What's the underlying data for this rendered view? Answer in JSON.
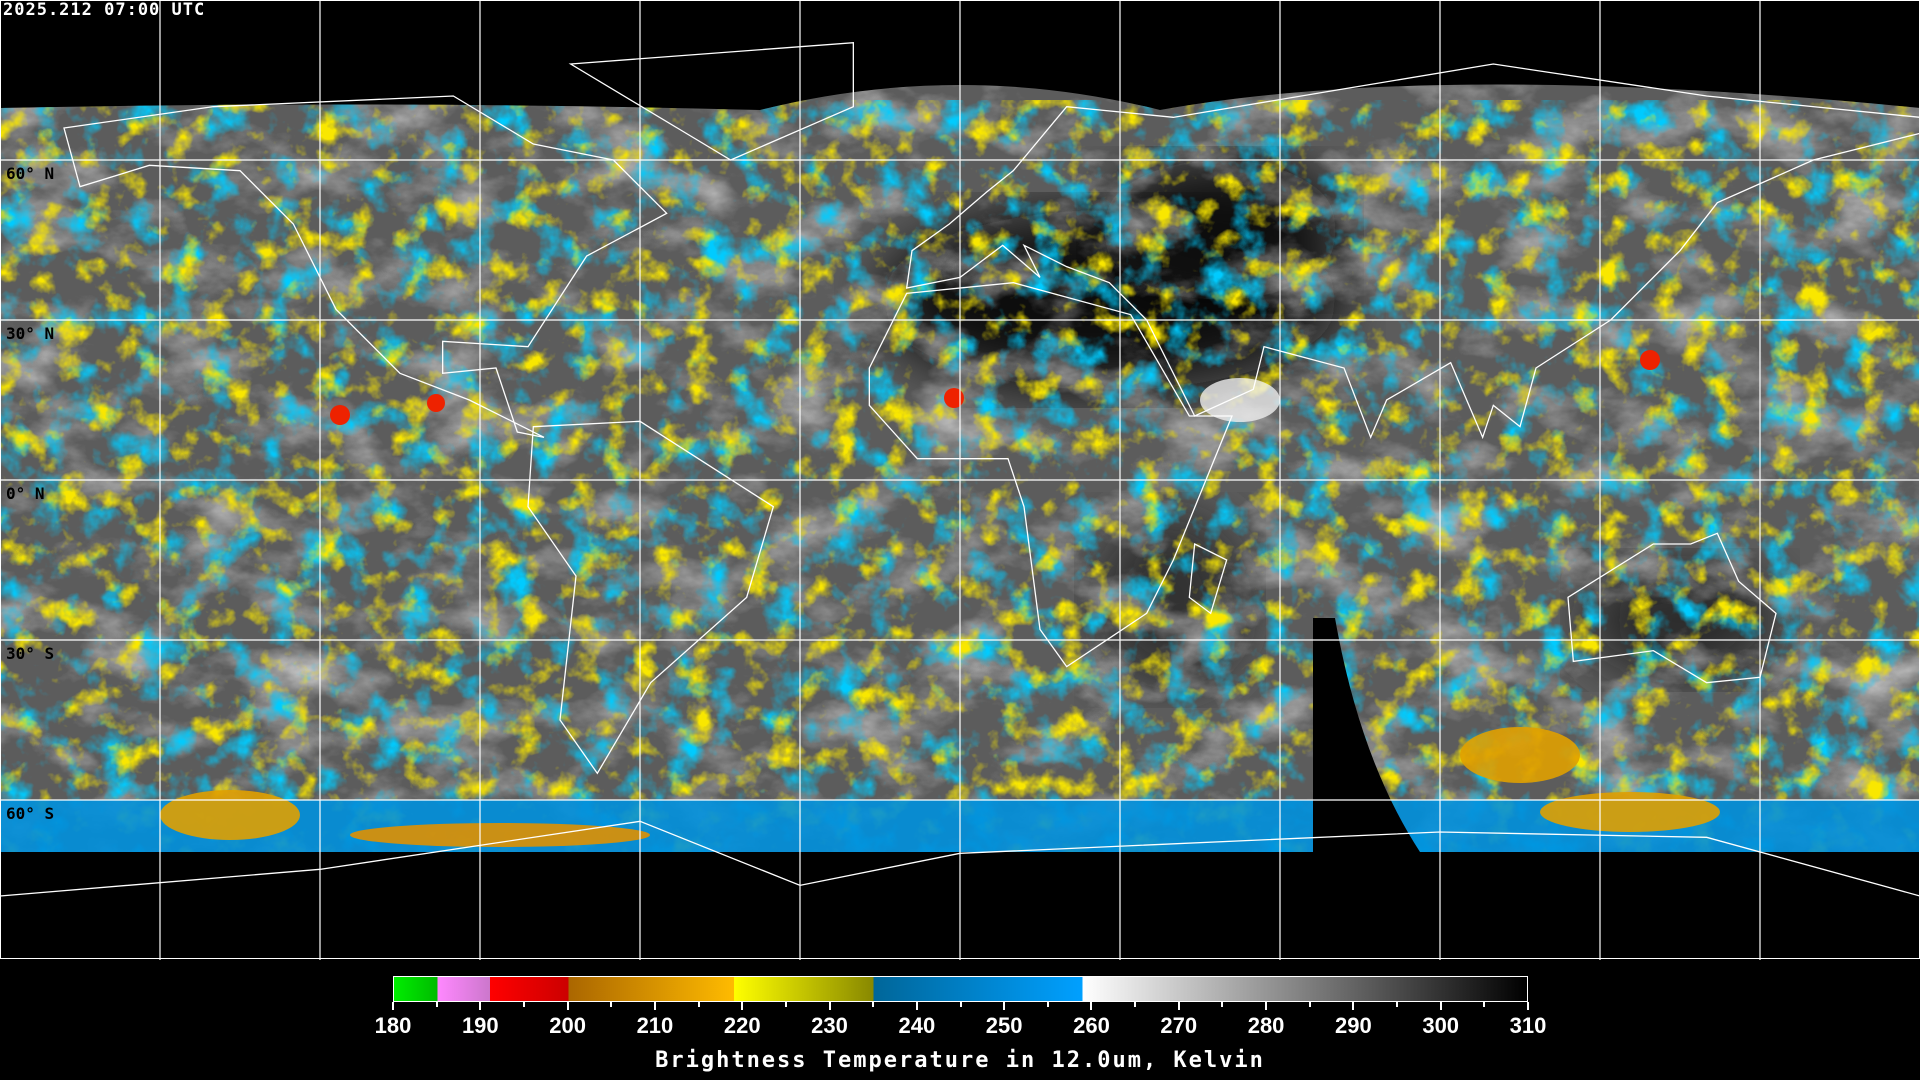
{
  "header": {
    "timestamp": "2025.212 07:00 UTC"
  },
  "map": {
    "projection": "equirectangular",
    "grid_spacing_deg": 30,
    "lat_labels": [
      "60° N",
      "30° N",
      "0° N",
      "30° S",
      "60° S"
    ]
  },
  "colorbar": {
    "title": "Brightness Temperature in 12.0um, Kelvin",
    "min": 180,
    "max": 310,
    "tick_labels": [
      "180",
      "190",
      "200",
      "210",
      "220",
      "230",
      "240",
      "250",
      "260",
      "270",
      "280",
      "290",
      "300",
      "310"
    ],
    "segments": [
      {
        "from": 180,
        "to": 185,
        "colors": [
          "#00ee00",
          "#00bb00"
        ]
      },
      {
        "from": 185,
        "to": 191,
        "colors": [
          "#ff88ff",
          "#cc77cc"
        ]
      },
      {
        "from": 191,
        "to": 200,
        "colors": [
          "#ff0000",
          "#cc0000"
        ]
      },
      {
        "from": 200,
        "to": 219,
        "colors": [
          "#aa6600",
          "#ffbb00"
        ]
      },
      {
        "from": 219,
        "to": 235,
        "colors": [
          "#ffff00",
          "#888800"
        ]
      },
      {
        "from": 235,
        "to": 259,
        "colors": [
          "#006699",
          "#00a0ff"
        ]
      },
      {
        "from": 259,
        "to": 310,
        "colors": [
          "#ffffff",
          "#000000"
        ]
      }
    ]
  }
}
